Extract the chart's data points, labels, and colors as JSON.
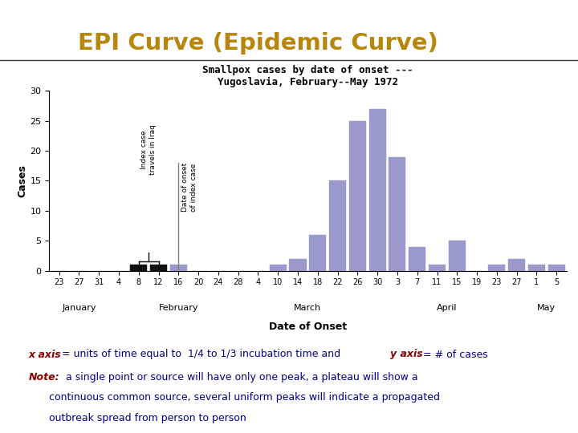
{
  "title": "EPI Curve (Epidemic Curve)",
  "title_color": "#B8860B",
  "chart_title_line1": "Smallpox cases by date of onset ---",
  "chart_title_line2": "Yugoslavia, February--May 1972",
  "xlabel": "Date of Onset",
  "ylabel": "Cases",
  "ylim": [
    0,
    30
  ],
  "yticks": [
    0,
    5,
    10,
    15,
    20,
    25,
    30
  ],
  "bar_color": "#9999cc",
  "black_bar_color": "#111111",
  "background_color": "#ffffff",
  "tick_labels": [
    "23",
    "27",
    "31",
    "4",
    "8",
    "12",
    "16",
    "20",
    "24",
    "28",
    "4",
    "10",
    "14",
    "18",
    "22",
    "26",
    "30",
    "3",
    "7",
    "11",
    "15",
    "19",
    "23",
    "27",
    "1",
    "5"
  ],
  "month_labels": [
    "January",
    "February",
    "March",
    "April",
    "May"
  ],
  "bar_heights": [
    0,
    0,
    0,
    0,
    1,
    1,
    1,
    0,
    0,
    0,
    0,
    1,
    2,
    6,
    15,
    25,
    27,
    19,
    4,
    1,
    5,
    0,
    1,
    2,
    1,
    1
  ],
  "black_bar_indices": [
    4,
    5
  ],
  "note_color_axis": "#8B0000",
  "note_color_text": "#00008B"
}
